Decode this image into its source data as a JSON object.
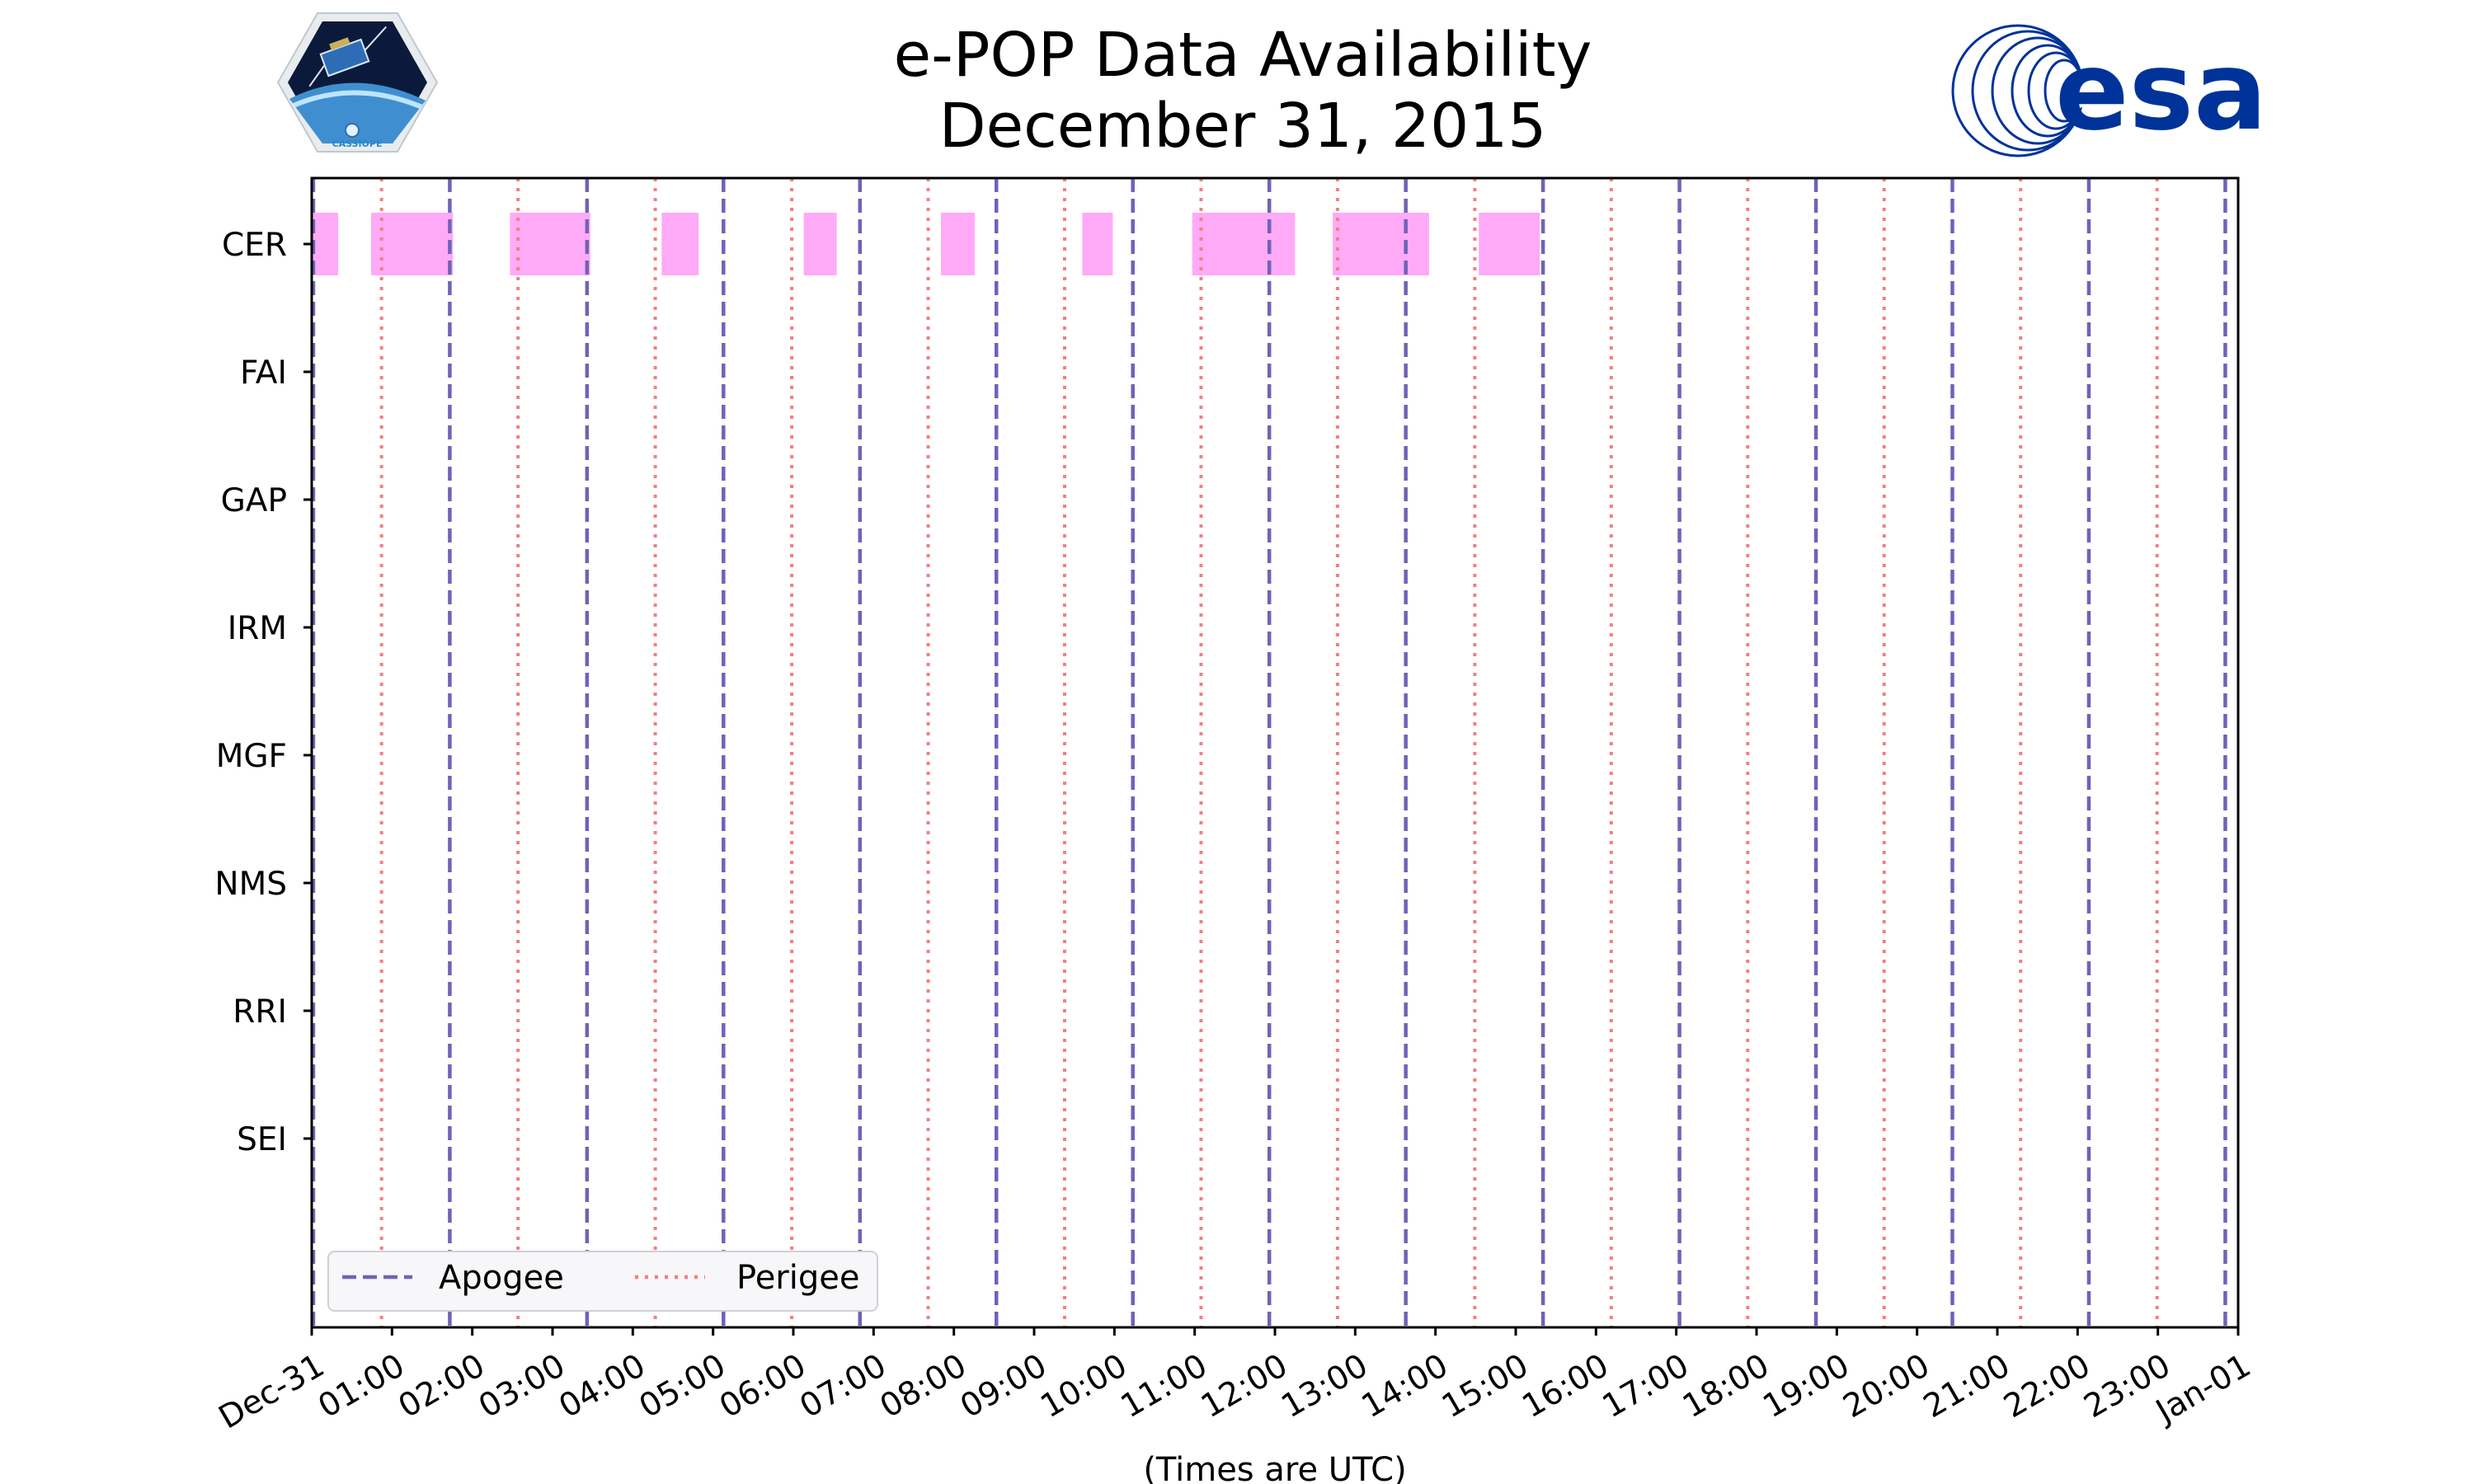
{
  "chart_data": {
    "type": "timeline",
    "title_lines": [
      "e-POP Data Availability",
      "December 31, 2015"
    ],
    "xlabel": "(Times are UTC)",
    "x_ticks": [
      "Dec-31",
      "01:00",
      "02:00",
      "03:00",
      "04:00",
      "05:00",
      "06:00",
      "07:00",
      "08:00",
      "09:00",
      "10:00",
      "11:00",
      "12:00",
      "13:00",
      "14:00",
      "15:00",
      "16:00",
      "17:00",
      "18:00",
      "19:00",
      "20:00",
      "21:00",
      "22:00",
      "23:00",
      "Jan-01"
    ],
    "xlim_hours": [
      0,
      24
    ],
    "instruments": [
      "CER",
      "FAI",
      "GAP",
      "IRM",
      "MGF",
      "NMS",
      "RRI",
      "SEI"
    ],
    "availability": [
      {
        "instrument": "CER",
        "intervals_hours": [
          [
            0.0,
            0.33
          ],
          [
            0.74,
            1.76
          ],
          [
            2.47,
            3.47
          ],
          [
            4.36,
            4.82
          ],
          [
            6.13,
            6.54
          ],
          [
            7.84,
            8.26
          ],
          [
            9.6,
            9.98
          ],
          [
            10.97,
            12.25
          ],
          [
            12.72,
            13.92
          ],
          [
            14.54,
            15.3
          ]
        ]
      }
    ],
    "apogee_hours": [
      0.02,
      1.72,
      3.43,
      5.13,
      6.83,
      8.53,
      10.23,
      11.93,
      13.63,
      15.34,
      17.04,
      18.74,
      20.44,
      22.14,
      23.84
    ],
    "perigee_hours": [
      0.87,
      2.57,
      4.28,
      5.98,
      7.68,
      9.38,
      11.08,
      12.78,
      14.49,
      16.19,
      17.89,
      19.59,
      21.29,
      22.99
    ],
    "legend": {
      "items": [
        "Apogee",
        "Perigee"
      ],
      "placement": "lower-left"
    },
    "colors": {
      "availability": "#ffaaf7",
      "apogee": "#6e63b8",
      "perigee": "#f47e80"
    }
  },
  "logos": {
    "left": {
      "name": "CASSIOPE mission patch",
      "text": "CASSIOPE"
    },
    "right": {
      "name": "ESA logo",
      "text": "esa",
      "color": "#003399"
    }
  }
}
